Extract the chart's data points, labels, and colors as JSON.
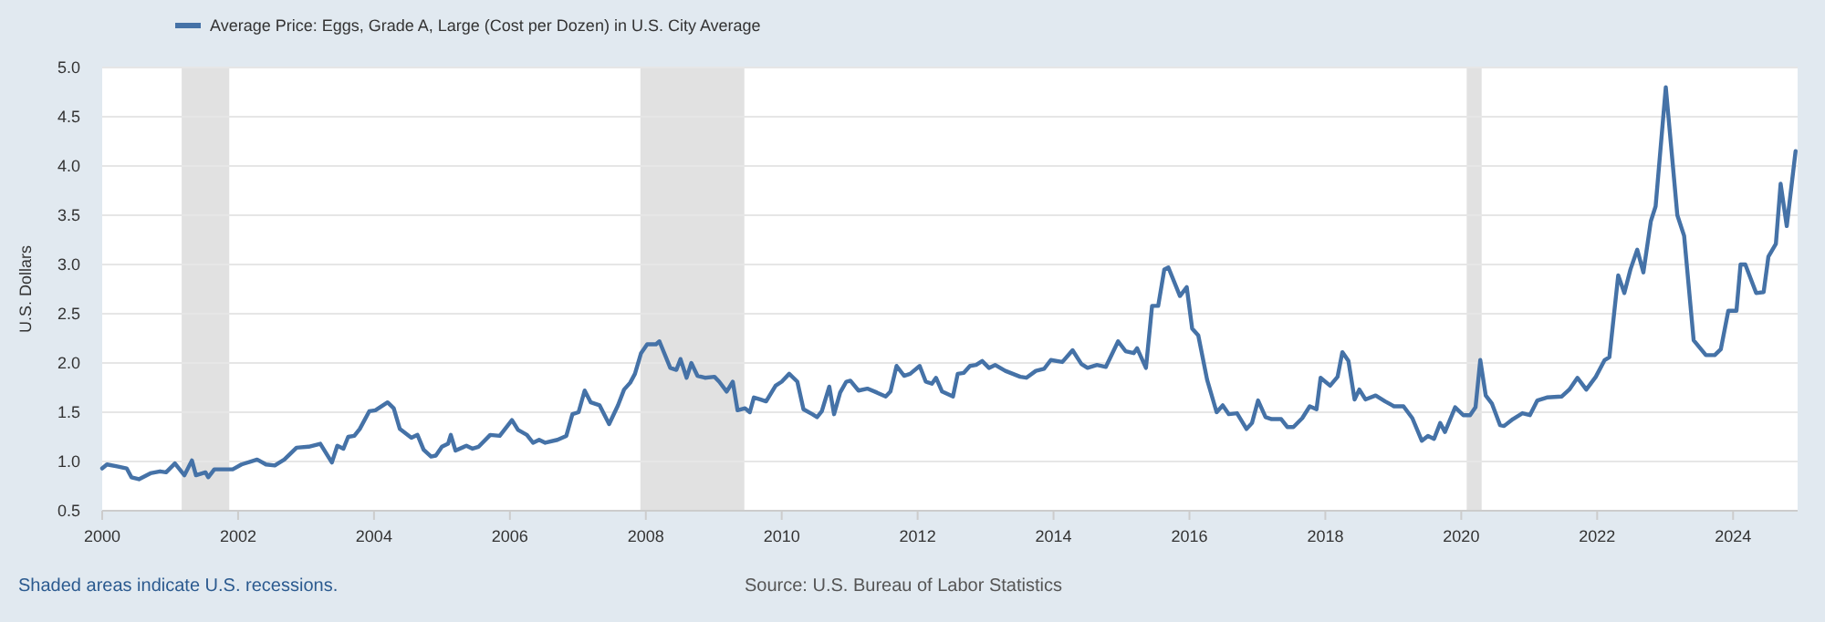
{
  "chart_data": {
    "type": "line",
    "ylabel": "U.S. Dollars",
    "legend": "top left",
    "grid": "y",
    "xlim": [
      2000,
      2024.95
    ],
    "xticks": [
      2000,
      2002,
      2004,
      2006,
      2008,
      2010,
      2012,
      2014,
      2016,
      2018,
      2020,
      2022,
      2024
    ],
    "ylim": [
      0.5,
      5.0
    ],
    "yticks": [
      {
        "value": 0.5,
        "label": "0.5"
      },
      {
        "value": 1,
        "label": "1.0"
      },
      {
        "value": 1.5,
        "label": "1.5"
      },
      {
        "value": 2,
        "label": "2.0"
      },
      {
        "value": 2.5,
        "label": "2.5"
      },
      {
        "value": 3,
        "label": "3.0"
      },
      {
        "value": 3.5,
        "label": "3.5"
      },
      {
        "value": 4,
        "label": "4.0"
      },
      {
        "value": 4.5,
        "label": "4.5"
      },
      {
        "value": 5,
        "label": "5.0"
      }
    ],
    "bands": [
      {
        "axis": "x",
        "from": 2001.17,
        "to": 2001.87,
        "color": "#e1e1e1"
      },
      {
        "axis": "x",
        "from": 2007.92,
        "to": 2009.45,
        "color": "#e1e1e1"
      },
      {
        "axis": "x",
        "from": 2020.08,
        "to": 2020.3,
        "color": "#e1e1e1"
      }
    ],
    "annotations": [
      "Shaded areas indicate U.S. recessions.",
      "Source: U.S. Bureau of Labor Statistics"
    ],
    "series": [
      {
        "name": "Average Price: Eggs, Grade A, Large (Cost per Dozen) in U.S. City Average",
        "color": "#4572a7",
        "x": [
          2000.0,
          2000.07,
          2000.22,
          2000.36,
          2000.43,
          2000.54,
          2000.71,
          2000.85,
          2000.94,
          2001.07,
          2001.21,
          2001.32,
          2001.38,
          2001.52,
          2001.56,
          2001.65,
          2001.92,
          2002.05,
          2002.28,
          2002.41,
          2002.54,
          2002.68,
          2002.86,
          2003.04,
          2003.21,
          2003.38,
          2003.46,
          2003.55,
          2003.62,
          2003.71,
          2003.79,
          2003.93,
          2004.02,
          2004.2,
          2004.29,
          2004.38,
          2004.55,
          2004.64,
          2004.73,
          2004.84,
          2004.91,
          2005.0,
          2005.09,
          2005.13,
          2005.2,
          2005.36,
          2005.45,
          2005.54,
          2005.71,
          2005.85,
          2006.03,
          2006.12,
          2006.25,
          2006.34,
          2006.43,
          2006.52,
          2006.7,
          2006.83,
          2006.92,
          2007.01,
          2007.1,
          2007.19,
          2007.32,
          2007.46,
          2007.59,
          2007.68,
          2007.77,
          2007.84,
          2007.93,
          2008.02,
          2008.15,
          2008.2,
          2008.36,
          2008.45,
          2008.51,
          2008.6,
          2008.67,
          2008.76,
          2008.87,
          2009.01,
          2009.08,
          2009.19,
          2009.28,
          2009.35,
          2009.46,
          2009.53,
          2009.59,
          2009.68,
          2009.77,
          2009.91,
          2010.0,
          2010.11,
          2010.23,
          2010.32,
          2010.45,
          2010.52,
          2010.59,
          2010.7,
          2010.77,
          2010.86,
          2010.95,
          2011.01,
          2011.13,
          2011.26,
          2011.4,
          2011.53,
          2011.6,
          2011.69,
          2011.8,
          2011.89,
          2012.03,
          2012.12,
          2012.21,
          2012.27,
          2012.36,
          2012.52,
          2012.59,
          2012.68,
          2012.77,
          2012.86,
          2012.95,
          2013.05,
          2013.14,
          2013.29,
          2013.51,
          2013.6,
          2013.74,
          2013.86,
          2013.96,
          2014.13,
          2014.28,
          2014.41,
          2014.5,
          2014.64,
          2014.77,
          2014.95,
          2015.06,
          2015.18,
          2015.23,
          2015.36,
          2015.45,
          2015.54,
          2015.63,
          2015.69,
          2015.86,
          2015.96,
          2016.04,
          2016.13,
          2016.26,
          2016.4,
          2016.49,
          2016.58,
          2016.7,
          2016.84,
          2016.92,
          2017.01,
          2017.12,
          2017.21,
          2017.35,
          2017.44,
          2017.53,
          2017.66,
          2017.77,
          2017.87,
          2017.93,
          2018.07,
          2018.18,
          2018.25,
          2018.34,
          2018.43,
          2018.5,
          2018.59,
          2018.74,
          2018.88,
          2019.01,
          2019.15,
          2019.28,
          2019.42,
          2019.51,
          2019.6,
          2019.69,
          2019.76,
          2019.91,
          2020.03,
          2020.13,
          2020.21,
          2020.28,
          2020.36,
          2020.45,
          2020.57,
          2020.63,
          2020.76,
          2020.9,
          2021.01,
          2021.12,
          2021.26,
          2021.48,
          2021.59,
          2021.71,
          2021.84,
          2021.98,
          2022.11,
          2022.18,
          2022.31,
          2022.4,
          2022.49,
          2022.59,
          2022.68,
          2022.79,
          2022.86,
          2023.01,
          2023.18,
          2023.28,
          2023.42,
          2023.6,
          2023.73,
          2023.82,
          2023.93,
          2024.05,
          2024.11,
          2024.18,
          2024.34,
          2024.45,
          2024.52,
          2024.63,
          2024.7,
          2024.79,
          2024.92
        ],
        "values": [
          0.93,
          0.97,
          0.95,
          0.93,
          0.84,
          0.82,
          0.88,
          0.9,
          0.89,
          0.98,
          0.86,
          1.01,
          0.86,
          0.89,
          0.84,
          0.92,
          0.92,
          0.97,
          1.02,
          0.97,
          0.96,
          1.02,
          1.14,
          1.15,
          1.18,
          0.99,
          1.16,
          1.13,
          1.25,
          1.26,
          1.33,
          1.51,
          1.52,
          1.6,
          1.54,
          1.33,
          1.24,
          1.27,
          1.12,
          1.05,
          1.06,
          1.15,
          1.18,
          1.27,
          1.11,
          1.16,
          1.13,
          1.15,
          1.27,
          1.26,
          1.42,
          1.32,
          1.27,
          1.19,
          1.22,
          1.19,
          1.22,
          1.26,
          1.48,
          1.5,
          1.72,
          1.6,
          1.57,
          1.38,
          1.57,
          1.73,
          1.8,
          1.89,
          2.1,
          2.19,
          2.19,
          2.22,
          1.95,
          1.93,
          2.04,
          1.85,
          2.0,
          1.87,
          1.85,
          1.86,
          1.81,
          1.71,
          1.81,
          1.52,
          1.54,
          1.5,
          1.65,
          1.63,
          1.61,
          1.77,
          1.81,
          1.89,
          1.81,
          1.53,
          1.48,
          1.45,
          1.51,
          1.76,
          1.48,
          1.7,
          1.81,
          1.82,
          1.72,
          1.74,
          1.7,
          1.66,
          1.71,
          1.97,
          1.87,
          1.89,
          1.97,
          1.81,
          1.79,
          1.85,
          1.71,
          1.66,
          1.89,
          1.9,
          1.97,
          1.98,
          2.02,
          1.95,
          1.98,
          1.92,
          1.86,
          1.85,
          1.92,
          1.94,
          2.03,
          2.01,
          2.13,
          1.99,
          1.95,
          1.98,
          1.96,
          2.22,
          2.12,
          2.1,
          2.15,
          1.95,
          2.58,
          2.58,
          2.95,
          2.97,
          2.68,
          2.77,
          2.35,
          2.28,
          1.83,
          1.5,
          1.57,
          1.48,
          1.49,
          1.33,
          1.39,
          1.62,
          1.45,
          1.43,
          1.43,
          1.35,
          1.35,
          1.44,
          1.56,
          1.53,
          1.85,
          1.77,
          1.86,
          2.11,
          2.02,
          1.63,
          1.73,
          1.63,
          1.67,
          1.61,
          1.56,
          1.56,
          1.44,
          1.21,
          1.26,
          1.23,
          1.39,
          1.3,
          1.55,
          1.47,
          1.47,
          1.55,
          2.03,
          1.67,
          1.59,
          1.37,
          1.36,
          1.43,
          1.49,
          1.47,
          1.62,
          1.65,
          1.66,
          1.73,
          1.85,
          1.73,
          1.86,
          2.03,
          2.06,
          2.89,
          2.71,
          2.95,
          3.15,
          2.92,
          3.44,
          3.59,
          4.8,
          3.5,
          3.29,
          2.23,
          2.08,
          2.08,
          2.14,
          2.53,
          2.53,
          3.0,
          3.0,
          2.71,
          2.72,
          3.08,
          3.21,
          3.82,
          3.39,
          4.15
        ]
      }
    ]
  }
}
